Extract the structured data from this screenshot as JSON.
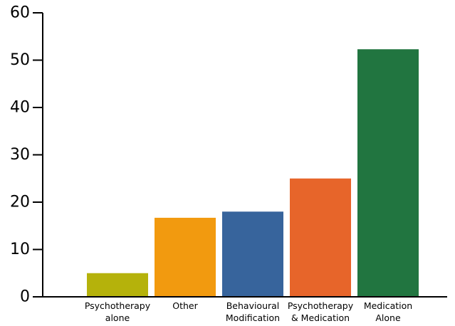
{
  "chart_data": {
    "type": "bar",
    "title": "",
    "xlabel": "",
    "ylabel": "",
    "ylim": [
      0,
      60
    ],
    "yticks": [
      0,
      10,
      20,
      30,
      40,
      50,
      60
    ],
    "grid": false,
    "categories": [
      [
        "Psychotherapy",
        "alone"
      ],
      [
        "Other"
      ],
      [
        "Behavioural",
        "Modification"
      ],
      [
        "Psychotherapy",
        "& Medication"
      ],
      [
        "Medication",
        "Alone"
      ]
    ],
    "values": [
      5,
      16.7,
      18,
      25,
      52.3
    ],
    "colors": [
      "#b5b20b",
      "#f29a0f",
      "#37649c",
      "#e7652a",
      "#217540"
    ]
  }
}
